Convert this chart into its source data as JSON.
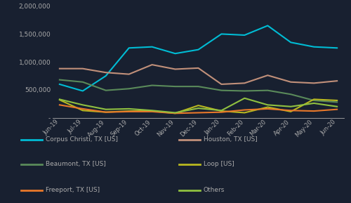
{
  "months": [
    "Jun-19",
    "Jul-19",
    "Aug-19",
    "Sep-19",
    "Oct-19",
    "Nov-19",
    "Dec-19",
    "Jan-20",
    "Feb-20",
    "Mar-20",
    "Apr-20",
    "May-20",
    "Jun-20"
  ],
  "series": {
    "Corpus Christi, TX [US]": [
      600000,
      480000,
      750000,
      1250000,
      1270000,
      1150000,
      1220000,
      1500000,
      1480000,
      1650000,
      1350000,
      1270000,
      1250000
    ],
    "Houston, TX [US]": [
      880000,
      880000,
      810000,
      780000,
      950000,
      870000,
      890000,
      600000,
      620000,
      760000,
      640000,
      620000,
      660000
    ],
    "Beaumont, TX [US]": [
      680000,
      640000,
      490000,
      520000,
      580000,
      560000,
      560000,
      490000,
      480000,
      490000,
      420000,
      310000,
      280000
    ],
    "Loop [US]": [
      320000,
      130000,
      100000,
      120000,
      120000,
      80000,
      220000,
      120000,
      90000,
      190000,
      110000,
      330000,
      310000
    ],
    "Freeport, TX [US]": [
      230000,
      160000,
      100000,
      110000,
      110000,
      80000,
      90000,
      100000,
      140000,
      160000,
      130000,
      120000,
      150000
    ],
    "Others": [
      330000,
      230000,
      150000,
      160000,
      130000,
      90000,
      170000,
      130000,
      350000,
      230000,
      200000,
      260000,
      200000
    ]
  },
  "colors": {
    "Corpus Christi, TX [US]": "#00bcd4",
    "Houston, TX [US]": "#c1907a",
    "Beaumont, TX [US]": "#5a8a5a",
    "Loop [US]": "#b8b820",
    "Freeport, TX [US]": "#e8782a",
    "Others": "#90c040"
  },
  "background_color": "#182030",
  "text_color": "#aaaaaa",
  "ylim": [
    0,
    2000000
  ],
  "yticks": [
    0,
    500000,
    1000000,
    1500000,
    2000000
  ],
  "legend_order": [
    "Corpus Christi, TX [US]",
    "Houston, TX [US]",
    "Beaumont, TX [US]",
    "Loop [US]",
    "Freeport, TX [US]",
    "Others"
  ]
}
